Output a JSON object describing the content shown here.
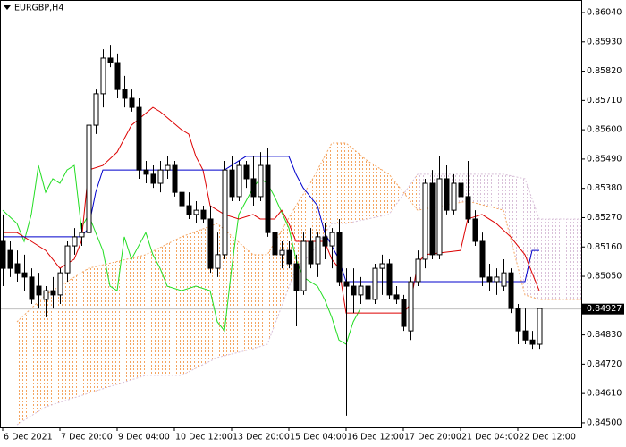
{
  "chart_data": {
    "type": "candlestick",
    "title": "EURGBP,H4",
    "categories": [
      "6 Dec 2021",
      null,
      null,
      null,
      null,
      null,
      null,
      null,
      "7 Dec 20:00",
      null,
      null,
      null,
      null,
      null,
      null,
      null,
      "9 Dec 04:00",
      null,
      null,
      null,
      null,
      null,
      null,
      null,
      "10 Dec 12:00",
      null,
      null,
      null,
      null,
      null,
      null,
      null,
      "13 Dec 20:00",
      null,
      null,
      null,
      null,
      null,
      null,
      null,
      "15 Dec 04:00",
      null,
      null,
      null,
      null,
      null,
      null,
      null,
      "16 Dec 12:00",
      null,
      null,
      null,
      null,
      null,
      null,
      null,
      "17 Dec 20:00",
      null,
      null,
      null,
      null,
      null,
      null,
      null,
      "21 Dec 04:00",
      null,
      null,
      null,
      null,
      null,
      null,
      null,
      "22 Dec 12:00",
      null,
      null,
      null
    ],
    "open": [
      0.85181,
      0.85147,
      0.85097,
      0.85063,
      0.85047,
      0.85013,
      0.84963,
      0.84996,
      0.8498,
      0.85063,
      0.85164,
      0.85198,
      0.85214,
      0.85617,
      0.85735,
      0.85869,
      0.85852,
      0.85751,
      0.85718,
      0.85684,
      0.85449,
      0.85433,
      0.85399,
      0.85449,
      0.85466,
      0.85365,
      0.85315,
      0.85282,
      0.85298,
      0.85265,
      0.8508,
      0.85131,
      0.85449,
      0.85349,
      0.85466,
      0.85416,
      0.85349,
      0.85466,
      0.85214,
      0.85131,
      0.85147,
      0.85097,
      0.84996,
      0.85181,
      0.85097,
      0.85198,
      0.85164,
      0.85214,
      0.8503,
      0.85013,
      0.8498,
      0.85013,
      0.84963,
      0.8508,
      0.85097,
      0.8498,
      0.84963,
      0.84845,
      0.8503,
      0.85114,
      0.85399,
      0.85131,
      0.85416,
      0.85298,
      0.85399,
      0.85349,
      0.85265,
      0.85181,
      0.85047,
      0.8503,
      0.85013,
      0.85063,
      0.84929,
      0.84845,
      0.84811,
      0.84795
    ],
    "high": [
      0.85282,
      0.85181,
      0.85147,
      0.85131,
      0.8508,
      0.85063,
      0.85013,
      0.85047,
      0.8508,
      0.85181,
      0.85231,
      0.85248,
      0.85634,
      0.85751,
      0.85902,
      0.85919,
      0.85886,
      0.85802,
      0.85751,
      0.85718,
      0.85483,
      0.85466,
      0.85483,
      0.855,
      0.85483,
      0.85382,
      0.85365,
      0.85332,
      0.85315,
      0.85315,
      0.85214,
      0.85483,
      0.855,
      0.85483,
      0.85483,
      0.855,
      0.85516,
      0.85533,
      0.85248,
      0.85181,
      0.85181,
      0.85131,
      0.85214,
      0.85231,
      0.85214,
      0.85248,
      0.85231,
      0.85265,
      0.8508,
      0.8508,
      0.85047,
      0.8508,
      0.85097,
      0.85131,
      0.85114,
      0.85013,
      0.8498,
      0.85047,
      0.85147,
      0.85416,
      0.85449,
      0.855,
      0.85466,
      0.85433,
      0.85433,
      0.85483,
      0.85298,
      0.85214,
      0.85097,
      0.8508,
      0.85114,
      0.8508,
      0.84946,
      0.84929,
      0.84845,
      0.84929
    ],
    "low": [
      0.85013,
      0.85047,
      0.8503,
      0.84996,
      0.84946,
      0.84929,
      0.84896,
      0.84929,
      0.84946,
      0.8503,
      0.85131,
      0.85164,
      0.85198,
      0.85584,
      0.85684,
      0.85835,
      0.85718,
      0.85684,
      0.85668,
      0.85416,
      0.85399,
      0.85382,
      0.85365,
      0.85416,
      0.85349,
      0.85298,
      0.85265,
      0.85248,
      0.85248,
      0.85063,
      0.85047,
      0.85114,
      0.85332,
      0.85332,
      0.85382,
      0.85315,
      0.85332,
      0.85198,
      0.85114,
      0.8508,
      0.8508,
      0.84862,
      0.8498,
      0.8508,
      0.85047,
      0.85114,
      0.8508,
      0.85013,
      0.84527,
      0.84912,
      0.84946,
      0.84946,
      0.84946,
      0.8498,
      0.84963,
      0.84946,
      0.84845,
      0.84811,
      0.85013,
      0.8508,
      0.85114,
      0.85114,
      0.85282,
      0.85282,
      0.85332,
      0.85248,
      0.85164,
      0.85013,
      0.84996,
      0.8498,
      0.84996,
      0.84912,
      0.84795,
      0.84795,
      0.84778,
      0.84778
    ],
    "close": [
      0.8508,
      0.8508,
      0.85063,
      0.85047,
      0.84963,
      0.8498,
      0.84996,
      0.8498,
      0.85063,
      0.85164,
      0.85198,
      0.85214,
      0.85617,
      0.85735,
      0.85869,
      0.85852,
      0.85751,
      0.85718,
      0.85684,
      0.85449,
      0.85433,
      0.85399,
      0.85449,
      0.85466,
      0.85365,
      0.85315,
      0.85282,
      0.85298,
      0.85265,
      0.8508,
      0.85131,
      0.85449,
      0.85349,
      0.85466,
      0.85416,
      0.85349,
      0.85466,
      0.85214,
      0.85131,
      0.85147,
      0.85097,
      0.84996,
      0.85181,
      0.85097,
      0.85198,
      0.85164,
      0.85214,
      0.8503,
      0.85013,
      0.8498,
      0.85013,
      0.84963,
      0.8508,
      0.85097,
      0.8498,
      0.84963,
      0.84862,
      0.8503,
      0.85114,
      0.85399,
      0.85131,
      0.85416,
      0.85298,
      0.85399,
      0.85349,
      0.85265,
      0.85181,
      0.85047,
      0.8503,
      0.85047,
      0.85063,
      0.84929,
      0.84845,
      0.84811,
      0.84795,
      0.84929
    ],
    "up_color": "#ffffff",
    "down_color": "#000000",
    "ylim": [
      0.84483,
      0.86087
    ],
    "yticks": [
      {
        "value": 0.8604,
        "label": "0.86040"
      },
      {
        "value": 0.8593,
        "label": "0.85930"
      },
      {
        "value": 0.8582,
        "label": "0.85820"
      },
      {
        "value": 0.8571,
        "label": "0.85710"
      },
      {
        "value": 0.856,
        "label": "0.85600"
      },
      {
        "value": 0.8549,
        "label": "0.85490"
      },
      {
        "value": 0.8538,
        "label": "0.85380"
      },
      {
        "value": 0.8527,
        "label": "0.85270"
      },
      {
        "value": 0.8516,
        "label": "0.85160"
      },
      {
        "value": 0.8505,
        "label": "0.85050"
      },
      {
        "value": 0.8483,
        "label": "0.84830"
      },
      {
        "value": 0.8472,
        "label": "0.84720"
      },
      {
        "value": 0.8461,
        "label": "0.84610"
      },
      {
        "value": 0.845,
        "label": "0.84500"
      }
    ],
    "last_price": 0.84927,
    "cloud": {
      "x": [
        2,
        6,
        12,
        20,
        25,
        30,
        35,
        37,
        41,
        43,
        46,
        48,
        51,
        54,
        58,
        65,
        70,
        73,
        75,
        81
      ],
      "span_a": [
        0.84879,
        0.8498,
        0.8508,
        0.85131,
        0.85198,
        0.85248,
        0.85131,
        0.85131,
        0.85315,
        0.85399,
        0.8555,
        0.8555,
        0.85483,
        0.85433,
        0.85298,
        0.85332,
        0.85298,
        0.8498,
        0.84963,
        0.84963
      ],
      "span_b": [
        0.84493,
        0.8456,
        0.84611,
        0.84678,
        0.84678,
        0.84745,
        0.84778,
        0.84795,
        0.8508,
        0.85131,
        0.85248,
        0.85248,
        0.85265,
        0.85282,
        0.85433,
        0.85433,
        0.85433,
        0.85416,
        0.85265,
        0.85265
      ],
      "up_color": "#f4a460",
      "down_color": "#d8bfd8"
    },
    "lines": [
      {
        "color": "#22dd22",
        "x": [
          0,
          2,
          3,
          4,
          5,
          6,
          7,
          8,
          9,
          10,
          11,
          12,
          13,
          14,
          15,
          16,
          17,
          18,
          19,
          20,
          21,
          22,
          23,
          25,
          27,
          29,
          30,
          31,
          32,
          33,
          34,
          35,
          36,
          37,
          38,
          40,
          41,
          42,
          44,
          45,
          46,
          47,
          48,
          49,
          50
        ],
        "values": [
          0.85298,
          0.85248,
          0.85181,
          0.85282,
          0.85466,
          0.85365,
          0.85416,
          0.85399,
          0.85449,
          0.85466,
          0.85231,
          0.85282,
          0.85214,
          0.85147,
          0.85013,
          0.84996,
          0.85198,
          0.85114,
          0.85164,
          0.85214,
          0.85131,
          0.8508,
          0.85013,
          0.84996,
          0.85013,
          0.84996,
          0.84879,
          0.84845,
          0.8508,
          0.85282,
          0.85332,
          0.85382,
          0.85416,
          0.85399,
          0.85349,
          0.85231,
          0.85114,
          0.85047,
          0.85013,
          0.84963,
          0.84896,
          0.84811,
          0.84795,
          0.84879,
          0.84929
        ]
      },
      {
        "color": "#dd0000",
        "x": [
          0,
          2,
          4,
          6,
          8,
          10,
          11,
          12,
          14,
          16,
          18,
          21,
          22,
          25,
          26,
          27,
          28,
          29,
          31,
          33,
          35,
          36,
          38,
          39,
          40,
          41,
          45,
          46,
          47,
          48,
          56,
          57,
          58,
          59,
          64,
          65,
          67,
          69,
          71,
          73,
          74,
          75
        ],
        "values": [
          0.85214,
          0.85214,
          0.85181,
          0.85147,
          0.8508,
          0.85114,
          0.85181,
          0.85449,
          0.85466,
          0.85516,
          0.85617,
          0.85684,
          0.85668,
          0.856,
          0.85584,
          0.855,
          0.85449,
          0.85315,
          0.85282,
          0.85265,
          0.85282,
          0.85265,
          0.85265,
          0.85298,
          0.85248,
          0.85181,
          0.85181,
          0.85114,
          0.8508,
          0.84912,
          0.84912,
          0.84946,
          0.85097,
          0.85131,
          0.85147,
          0.85265,
          0.85282,
          0.85248,
          0.85198,
          0.85131,
          0.85063,
          0.84996
        ]
      },
      {
        "color": "#0000cc",
        "x": [
          0,
          11,
          12,
          13,
          14,
          31,
          32,
          34,
          40,
          41,
          42,
          44,
          45,
          47,
          48,
          73,
          74,
          75
        ],
        "values": [
          0.85198,
          0.85198,
          0.85231,
          0.85365,
          0.85449,
          0.85449,
          0.85466,
          0.855,
          0.855,
          0.85433,
          0.85382,
          0.85315,
          0.85214,
          0.85114,
          0.8503,
          0.8503,
          0.85147,
          0.85147
        ]
      }
    ]
  }
}
